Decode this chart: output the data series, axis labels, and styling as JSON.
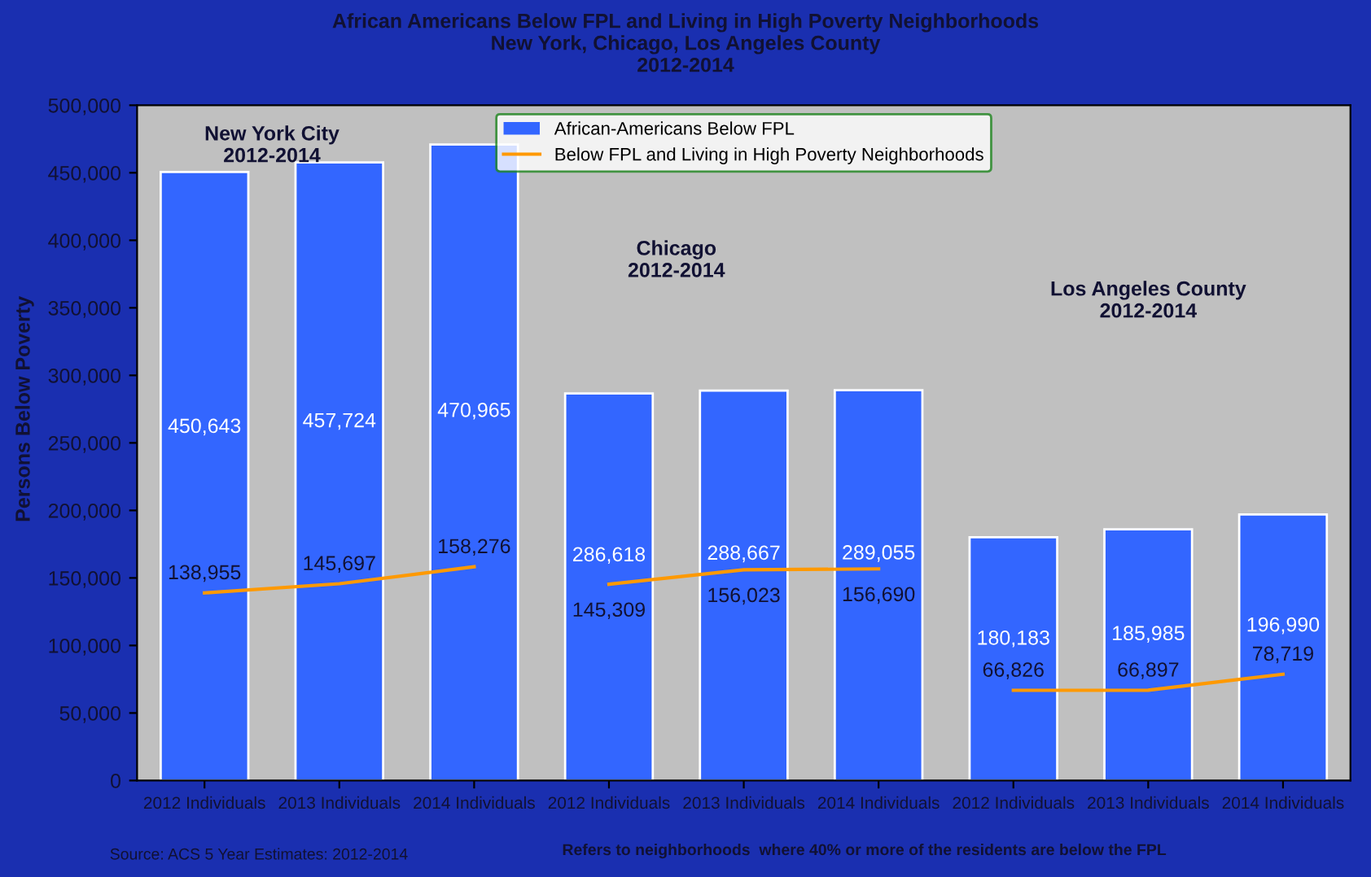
{
  "chart_data": {
    "type": "bar",
    "title": "African Americans Below FPL and Living in High Poverty Neighborhoods\nNew York, Chicago, Los Angeles County\n2012-2014",
    "ylabel": "Persons Below Poverty",
    "categories": [
      "2012 Individuals",
      "2013 Individuals",
      "2014 Individuals",
      "2012 Individuals",
      "2013 Individuals",
      "2014 Individuals",
      "2012 Individuals",
      "2013 Individuals",
      "2014 Individuals"
    ],
    "series": [
      {
        "name": "African-Americans Below FPL",
        "color": "#3366ff",
        "values": [
          450643,
          457724,
          470965,
          286618,
          288667,
          289055,
          180183,
          185985,
          196990
        ],
        "value_labels": [
          "450,643",
          "457,724",
          "470,965",
          "286,618",
          "288,667",
          "289,055",
          "180,183",
          "185,985",
          "196,990"
        ]
      },
      {
        "name": "Below FPL and Living in High Poverty Neighborhoods",
        "type": "line",
        "color": "#ff9900",
        "values": [
          138955,
          145697,
          158276,
          null,
          null,
          null,
          null,
          null,
          null
        ],
        "value_labels": [
          "138,955",
          "145,697",
          "158,276",
          null,
          null,
          null,
          null,
          null,
          null
        ]
      },
      {
        "type": "line",
        "color": "#ff9900",
        "values": [
          null,
          null,
          null,
          145309,
          156023,
          156690,
          null,
          null,
          null
        ],
        "value_labels": [
          null,
          null,
          null,
          "145,309",
          "156,023",
          "156,690",
          null,
          null,
          null
        ]
      },
      {
        "type": "line",
        "color": "#ff9900",
        "values": [
          null,
          null,
          null,
          null,
          null,
          null,
          66826,
          66897,
          78719
        ],
        "value_labels": [
          null,
          null,
          null,
          null,
          null,
          null,
          "66,826",
          "66,897",
          "78,719"
        ]
      }
    ],
    "ylim": [
      0,
      500000
    ],
    "yticks": [
      {
        "value": 0,
        "label": "0"
      },
      {
        "value": 50000,
        "label": "50,000"
      },
      {
        "value": 100000,
        "label": "100,000"
      },
      {
        "value": 150000,
        "label": "150,000"
      },
      {
        "value": 200000,
        "label": "200,000"
      },
      {
        "value": 250000,
        "label": "250,000"
      },
      {
        "value": 300000,
        "label": "300,000"
      },
      {
        "value": 350000,
        "label": "350,000"
      },
      {
        "value": 400000,
        "label": "400,000"
      },
      {
        "value": 450000,
        "label": "450,000"
      },
      {
        "value": 500000,
        "label": "500,000"
      }
    ],
    "grid": false,
    "legend": "top",
    "marker": "none",
    "line_style": "solid",
    "annotations": [
      "New York City\n2012-2014",
      "Chicago\n2012-2014",
      "Los Angeles County\n2012-2014",
      "Source: ACS 5 Year Estimates: 2012-2014",
      "Refers to neighborhoods  where 40% or more of the residents are below the FPL"
    ]
  }
}
